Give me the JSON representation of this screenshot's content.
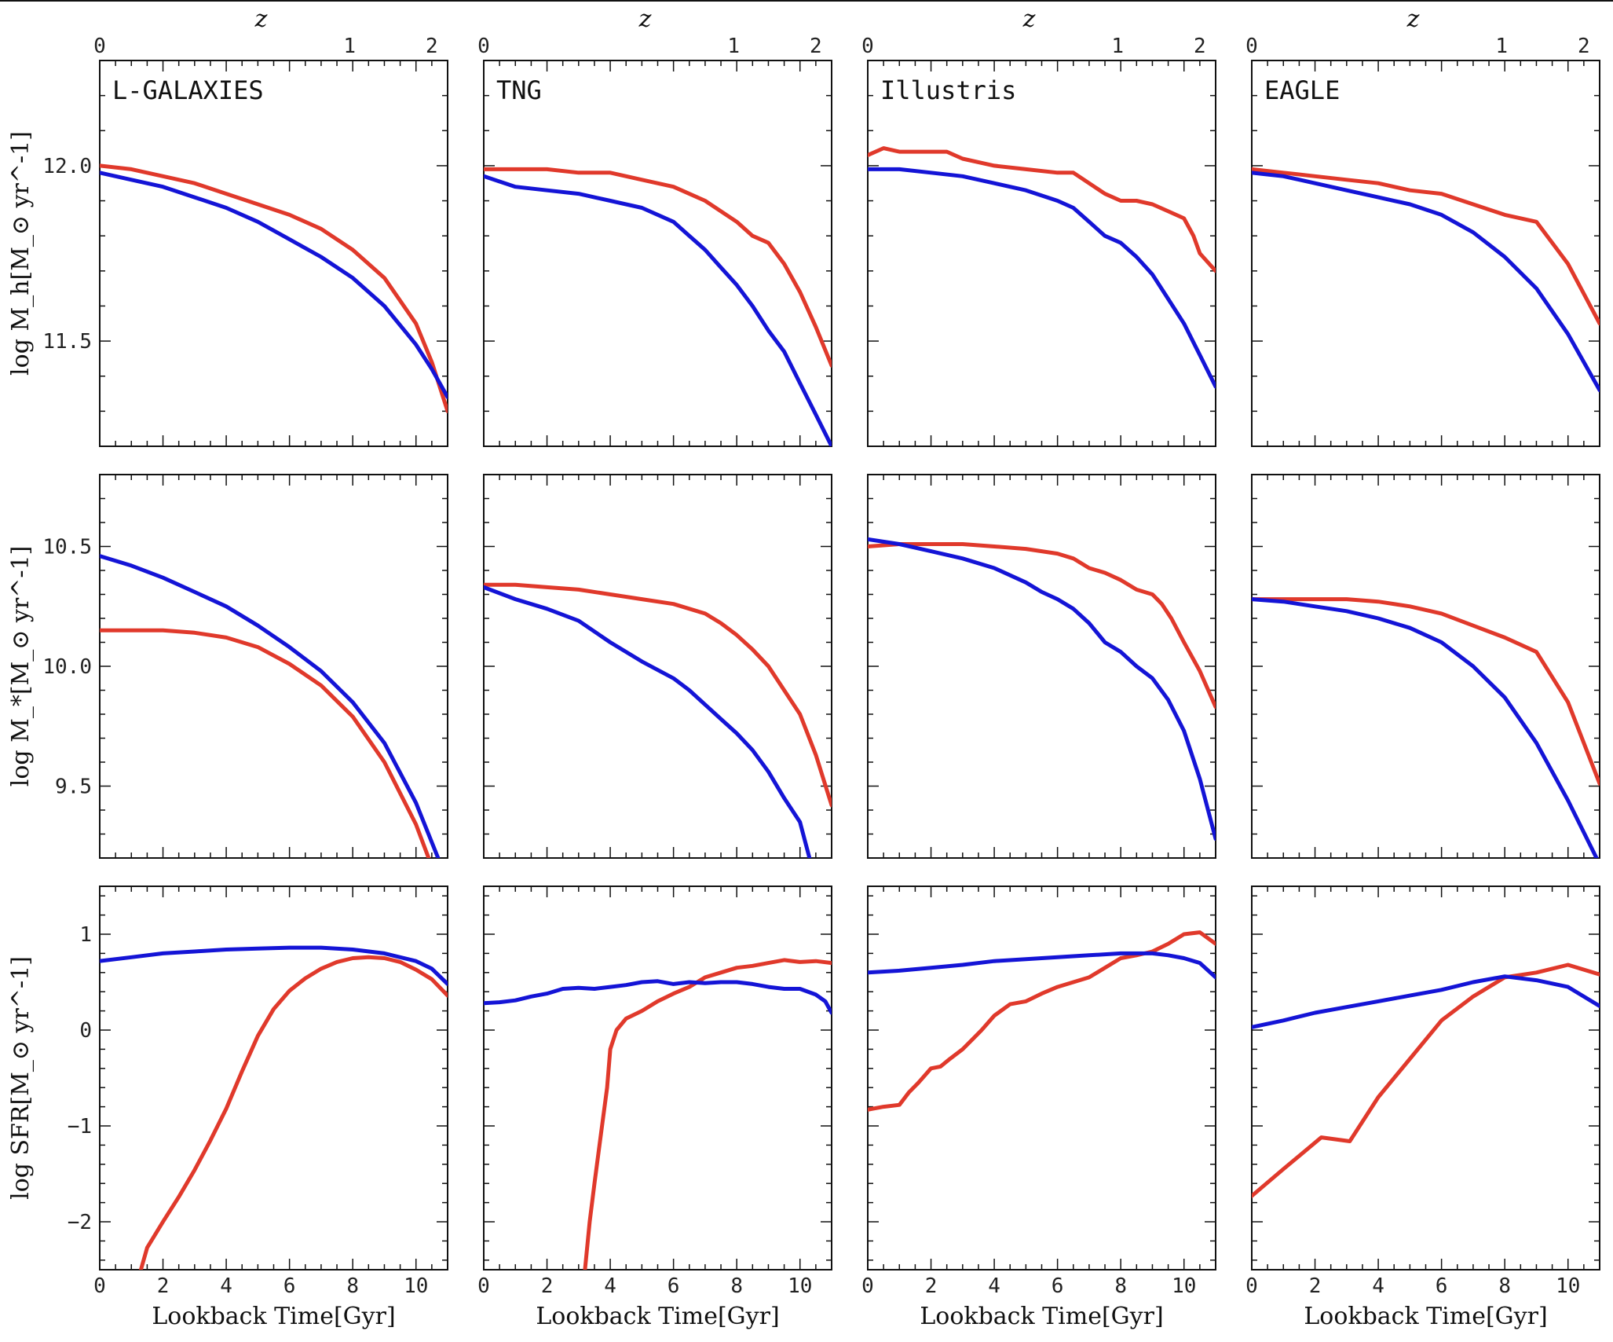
{
  "figure": {
    "columns": [
      "L-GALAXIES",
      "TNG",
      "Illustris",
      "EAGLE"
    ],
    "xlabel": "Lookback Time[Gyr]",
    "top_axis_label": "z",
    "top_ticks": [
      {
        "label": "0",
        "t": 0
      },
      {
        "label": "1",
        "t": 7.9
      },
      {
        "label": "2",
        "t": 10.5
      }
    ],
    "x_ticks": [
      "0",
      "2",
      "4",
      "6",
      "8",
      "10"
    ],
    "rows": [
      {
        "key": "mh",
        "ylabel": "log M_h[M_⊙ yr^-1]",
        "ylim": [
          11.2,
          12.3
        ],
        "yticks": [
          11.5,
          12.0
        ],
        "ytick_labels": [
          "11.5",
          "12.0"
        ]
      },
      {
        "key": "ms",
        "ylabel": "log M_*[M_⊙ yr^-1]",
        "ylim": [
          9.2,
          10.8
        ],
        "yticks": [
          9.5,
          10.0,
          10.5
        ],
        "ytick_labels": [
          "9.5",
          "10.0",
          "10.5"
        ]
      },
      {
        "key": "sfr",
        "ylabel": "log SFR[M_⊙ yr^-1]",
        "ylim": [
          -2.5,
          1.5
        ],
        "yticks": [
          -2,
          -1,
          0,
          1
        ],
        "ytick_labels": [
          "−2",
          "−1",
          "0",
          "1"
        ]
      }
    ],
    "colors": {
      "red": "#e0392b",
      "blue": "#1414d6"
    }
  },
  "chart_data": {
    "type": "line",
    "xlim": [
      0,
      11
    ],
    "panels": [
      {
        "row": "mh",
        "col": "L-GALAXIES",
        "series": [
          {
            "color": "red",
            "x": [
              0,
              1,
              2,
              3,
              4,
              5,
              6,
              7,
              8,
              9,
              10,
              10.5,
              11
            ],
            "y": [
              12.0,
              11.99,
              11.97,
              11.95,
              11.92,
              11.89,
              11.86,
              11.82,
              11.76,
              11.68,
              11.55,
              11.44,
              11.3
            ]
          },
          {
            "color": "blue",
            "x": [
              0,
              1,
              2,
              3,
              4,
              5,
              6,
              7,
              8,
              9,
              10,
              10.5,
              11
            ],
            "y": [
              11.98,
              11.96,
              11.94,
              11.91,
              11.88,
              11.84,
              11.79,
              11.74,
              11.68,
              11.6,
              11.49,
              11.42,
              11.34
            ]
          }
        ]
      },
      {
        "row": "mh",
        "col": "TNG",
        "series": [
          {
            "color": "red",
            "x": [
              0,
              1,
              2,
              3,
              4,
              5,
              6,
              7,
              8,
              8.5,
              9,
              9.5,
              10,
              10.5,
              11
            ],
            "y": [
              11.99,
              11.99,
              11.99,
              11.98,
              11.98,
              11.96,
              11.94,
              11.9,
              11.84,
              11.8,
              11.78,
              11.72,
              11.64,
              11.54,
              11.43
            ]
          },
          {
            "color": "blue",
            "x": [
              0,
              1,
              2,
              3,
              4,
              5,
              6,
              6.5,
              7,
              7.5,
              8,
              8.5,
              9,
              9.5,
              10,
              10.5,
              11
            ],
            "y": [
              11.97,
              11.94,
              11.93,
              11.92,
              11.9,
              11.88,
              11.84,
              11.8,
              11.76,
              11.71,
              11.66,
              11.6,
              11.53,
              11.47,
              11.38,
              11.29,
              11.2
            ]
          }
        ]
      },
      {
        "row": "mh",
        "col": "Illustris",
        "series": [
          {
            "color": "red",
            "x": [
              0,
              0.5,
              1,
              2,
              2.5,
              3,
              4,
              5,
              6,
              6.5,
              7,
              7.5,
              8,
              8.5,
              9,
              9.5,
              10,
              10.3,
              10.5,
              11
            ],
            "y": [
              12.03,
              12.05,
              12.04,
              12.04,
              12.04,
              12.02,
              12.0,
              11.99,
              11.98,
              11.98,
              11.95,
              11.92,
              11.9,
              11.9,
              11.89,
              11.87,
              11.85,
              11.8,
              11.75,
              11.7
            ]
          },
          {
            "color": "blue",
            "x": [
              0,
              1,
              2,
              3,
              4,
              5,
              6,
              6.5,
              7,
              7.5,
              8,
              8.5,
              9,
              9.5,
              10,
              10.5,
              11
            ],
            "y": [
              11.99,
              11.99,
              11.98,
              11.97,
              11.95,
              11.93,
              11.9,
              11.88,
              11.84,
              11.8,
              11.78,
              11.74,
              11.69,
              11.62,
              11.55,
              11.46,
              11.37
            ]
          }
        ]
      },
      {
        "row": "mh",
        "col": "EAGLE",
        "series": [
          {
            "color": "red",
            "x": [
              0,
              1,
              2,
              3,
              4,
              5,
              6,
              7,
              8,
              9,
              10,
              11
            ],
            "y": [
              11.99,
              11.98,
              11.97,
              11.96,
              11.95,
              11.93,
              11.92,
              11.89,
              11.86,
              11.84,
              11.72,
              11.55
            ]
          },
          {
            "color": "blue",
            "x": [
              0,
              1,
              2,
              3,
              4,
              5,
              6,
              7,
              8,
              9,
              10,
              11
            ],
            "y": [
              11.98,
              11.97,
              11.95,
              11.93,
              11.91,
              11.89,
              11.86,
              11.81,
              11.74,
              11.65,
              11.52,
              11.36
            ]
          }
        ]
      },
      {
        "row": "ms",
        "col": "L-GALAXIES",
        "series": [
          {
            "color": "red",
            "x": [
              0,
              1,
              2,
              3,
              4,
              5,
              6,
              7,
              8,
              9,
              10,
              10.4
            ],
            "y": [
              10.15,
              10.15,
              10.15,
              10.14,
              10.12,
              10.08,
              10.01,
              9.92,
              9.79,
              9.6,
              9.34,
              9.2
            ]
          },
          {
            "color": "blue",
            "x": [
              0,
              1,
              2,
              3,
              4,
              5,
              6,
              7,
              8,
              9,
              10,
              10.7
            ],
            "y": [
              10.46,
              10.42,
              10.37,
              10.31,
              10.25,
              10.17,
              10.08,
              9.98,
              9.85,
              9.68,
              9.43,
              9.2
            ]
          }
        ]
      },
      {
        "row": "ms",
        "col": "TNG",
        "series": [
          {
            "color": "red",
            "x": [
              0,
              1,
              2,
              3,
              4,
              5,
              6,
              7,
              7.5,
              8,
              8.5,
              9,
              9.5,
              10,
              10.5,
              11
            ],
            "y": [
              10.34,
              10.34,
              10.33,
              10.32,
              10.3,
              10.28,
              10.26,
              10.22,
              10.18,
              10.13,
              10.07,
              10.0,
              9.9,
              9.8,
              9.63,
              9.42
            ]
          },
          {
            "color": "blue",
            "x": [
              0,
              1,
              2,
              3,
              4,
              5,
              6,
              6.5,
              7,
              7.5,
              8,
              8.5,
              9,
              9.5,
              10,
              10.3
            ],
            "y": [
              10.33,
              10.28,
              10.24,
              10.19,
              10.1,
              10.02,
              9.95,
              9.9,
              9.84,
              9.78,
              9.72,
              9.65,
              9.56,
              9.45,
              9.35,
              9.2
            ]
          }
        ]
      },
      {
        "row": "ms",
        "col": "Illustris",
        "series": [
          {
            "color": "red",
            "x": [
              0,
              1,
              2,
              3,
              4,
              5,
              5.5,
              6,
              6.5,
              7,
              7.5,
              8,
              8.5,
              9,
              9.3,
              9.6,
              10,
              10.5,
              11
            ],
            "y": [
              10.5,
              10.51,
              10.51,
              10.51,
              10.5,
              10.49,
              10.48,
              10.47,
              10.45,
              10.41,
              10.39,
              10.36,
              10.32,
              10.3,
              10.26,
              10.2,
              10.1,
              9.98,
              9.83
            ]
          },
          {
            "color": "blue",
            "x": [
              0,
              1,
              2,
              3,
              4,
              5,
              5.5,
              6,
              6.5,
              7,
              7.5,
              8,
              8.5,
              9,
              9.5,
              10,
              10.5,
              11
            ],
            "y": [
              10.53,
              10.51,
              10.48,
              10.45,
              10.41,
              10.35,
              10.31,
              10.28,
              10.24,
              10.18,
              10.1,
              10.06,
              10.0,
              9.95,
              9.86,
              9.73,
              9.53,
              9.28
            ]
          }
        ]
      },
      {
        "row": "ms",
        "col": "EAGLE",
        "series": [
          {
            "color": "red",
            "x": [
              0,
              1,
              2,
              3,
              4,
              5,
              6,
              7,
              8,
              9,
              10,
              11
            ],
            "y": [
              10.28,
              10.28,
              10.28,
              10.28,
              10.27,
              10.25,
              10.22,
              10.17,
              10.12,
              10.06,
              9.85,
              9.51
            ]
          },
          {
            "color": "blue",
            "x": [
              0,
              1,
              2,
              3,
              4,
              5,
              6,
              7,
              8,
              9,
              10,
              10.9
            ],
            "y": [
              10.28,
              10.27,
              10.25,
              10.23,
              10.2,
              10.16,
              10.1,
              10.0,
              9.87,
              9.68,
              9.44,
              9.2
            ]
          }
        ]
      },
      {
        "row": "sfr",
        "col": "L-GALAXIES",
        "series": [
          {
            "color": "red",
            "x": [
              1.3,
              1.5,
              2,
              2.5,
              3,
              3.5,
              4,
              4.5,
              5,
              5.5,
              6,
              6.5,
              7,
              7.5,
              8,
              8.5,
              9,
              9.5,
              10,
              10.5,
              11
            ],
            "y": [
              -2.5,
              -2.27,
              -2.0,
              -1.74,
              -1.46,
              -1.15,
              -0.82,
              -0.43,
              -0.06,
              0.22,
              0.41,
              0.54,
              0.64,
              0.71,
              0.75,
              0.76,
              0.75,
              0.71,
              0.63,
              0.53,
              0.36
            ]
          },
          {
            "color": "blue",
            "x": [
              0,
              1,
              2,
              3,
              4,
              5,
              6,
              7,
              8,
              9,
              10,
              10.5,
              11
            ],
            "y": [
              0.72,
              0.76,
              0.8,
              0.82,
              0.84,
              0.85,
              0.86,
              0.86,
              0.84,
              0.8,
              0.72,
              0.64,
              0.48
            ]
          }
        ]
      },
      {
        "row": "sfr",
        "col": "TNG",
        "series": [
          {
            "color": "red",
            "x": [
              3.2,
              3.35,
              3.5,
              3.7,
              3.9,
              4.0,
              4.2,
              4.5,
              5,
              5.5,
              6,
              6.5,
              7,
              7.5,
              8,
              8.5,
              9,
              9.5,
              10,
              10.5,
              11
            ],
            "y": [
              -2.5,
              -2.0,
              -1.6,
              -1.1,
              -0.6,
              -0.2,
              0.0,
              0.12,
              0.2,
              0.3,
              0.38,
              0.45,
              0.55,
              0.6,
              0.65,
              0.67,
              0.7,
              0.73,
              0.71,
              0.72,
              0.7
            ]
          },
          {
            "color": "blue",
            "x": [
              0,
              0.5,
              1,
              1.5,
              2,
              2.5,
              3,
              3.5,
              4,
              4.5,
              5,
              5.5,
              6,
              6.5,
              7,
              7.5,
              8,
              8.5,
              9,
              9.5,
              10,
              10.5,
              10.8,
              11
            ],
            "y": [
              0.28,
              0.29,
              0.31,
              0.35,
              0.38,
              0.43,
              0.44,
              0.43,
              0.45,
              0.47,
              0.5,
              0.51,
              0.48,
              0.5,
              0.49,
              0.5,
              0.5,
              0.48,
              0.45,
              0.43,
              0.43,
              0.37,
              0.3,
              0.18
            ]
          }
        ]
      },
      {
        "row": "sfr",
        "col": "Illustris",
        "series": [
          {
            "color": "red",
            "x": [
              0,
              0.5,
              1,
              1.3,
              1.6,
              2,
              2.3,
              2.6,
              3,
              3.3,
              3.6,
              4,
              4.5,
              5,
              5.5,
              6,
              6.5,
              7,
              7.5,
              8,
              8.5,
              9,
              9.5,
              10,
              10.5,
              11
            ],
            "y": [
              -0.83,
              -0.8,
              -0.78,
              -0.65,
              -0.55,
              -0.4,
              -0.38,
              -0.3,
              -0.2,
              -0.1,
              0.0,
              0.15,
              0.27,
              0.3,
              0.38,
              0.45,
              0.5,
              0.55,
              0.65,
              0.75,
              0.78,
              0.82,
              0.9,
              1.0,
              1.02,
              0.9
            ]
          },
          {
            "color": "blue",
            "x": [
              0,
              1,
              2,
              3,
              4,
              5,
              6,
              7,
              8,
              8.5,
              9,
              9.5,
              10,
              10.5,
              11
            ],
            "y": [
              0.6,
              0.62,
              0.65,
              0.68,
              0.72,
              0.74,
              0.76,
              0.78,
              0.8,
              0.8,
              0.8,
              0.78,
              0.75,
              0.7,
              0.55
            ]
          }
        ]
      },
      {
        "row": "sfr",
        "col": "EAGLE",
        "series": [
          {
            "color": "red",
            "x": [
              0,
              1,
              2.2,
              3.1,
              4,
              5,
              6,
              7,
              8,
              9,
              10,
              11
            ],
            "y": [
              -1.73,
              -1.45,
              -1.12,
              -1.16,
              -0.7,
              -0.3,
              0.1,
              0.35,
              0.55,
              0.6,
              0.68,
              0.58
            ]
          },
          {
            "color": "blue",
            "x": [
              0,
              1,
              2,
              3,
              4,
              5,
              6,
              7,
              8,
              9,
              10,
              11
            ],
            "y": [
              0.03,
              0.1,
              0.18,
              0.24,
              0.3,
              0.36,
              0.42,
              0.5,
              0.56,
              0.52,
              0.45,
              0.25
            ]
          }
        ]
      }
    ]
  }
}
